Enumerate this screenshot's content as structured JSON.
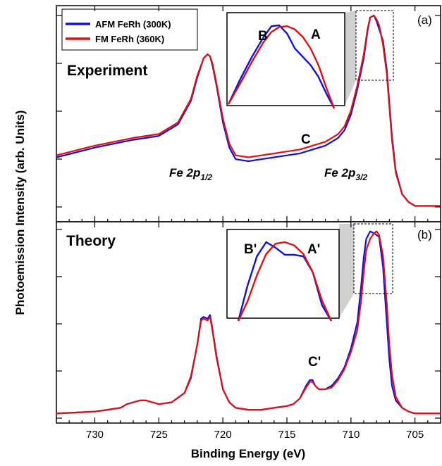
{
  "figure": {
    "xlabel": "Binding Energy (eV)",
    "ylabel": "Photoemission Intensity (arb. Units)"
  },
  "colors": {
    "afm": "#1010e0",
    "fm": "#e01010",
    "axis": "#000000",
    "inset_shade": "#d0d0d0"
  },
  "chart_data": [
    {
      "type": "line",
      "panel_tag": "(a)",
      "title": "Experiment",
      "xlabel": "Binding Energy (eV)",
      "ylabel": "Photoemission Intensity (arb. Units)",
      "xlim": [
        733,
        703
      ],
      "x_reversed": true,
      "x_ticks": [
        730,
        725,
        720,
        715,
        710,
        705
      ],
      "legend": {
        "placement": "top-left",
        "entries": [
          "AFM FeRh (300K)",
          "FM FeRh (360K)"
        ]
      },
      "annotations": [
        {
          "text": "Fe 2p",
          "sub": "1/2",
          "x": 721.5,
          "y": 0.23
        },
        {
          "text": "Fe 2p",
          "sub": "3/2",
          "x": 708.5,
          "y": 0.23
        },
        {
          "text": "C",
          "x": 713.3,
          "y": 0.36
        }
      ],
      "series": [
        {
          "name": "AFM FeRh (300K)",
          "color": "#1010e0",
          "x": [
            733,
            730,
            727,
            725,
            723.5,
            722.5,
            722,
            721.5,
            721.2,
            721,
            720.8,
            720.5,
            720,
            719.5,
            719,
            718,
            717,
            716,
            715,
            714,
            713,
            712,
            711,
            710.5,
            710,
            709.5,
            709,
            708.7,
            708.5,
            708.2,
            708,
            707.8,
            707.5,
            707.2,
            707,
            706.8,
            706.5,
            706,
            705.5,
            705,
            703
          ],
          "y": [
            0.27,
            0.32,
            0.36,
            0.38,
            0.44,
            0.56,
            0.68,
            0.78,
            0.8,
            0.79,
            0.74,
            0.64,
            0.45,
            0.32,
            0.26,
            0.25,
            0.26,
            0.27,
            0.28,
            0.29,
            0.31,
            0.33,
            0.37,
            0.41,
            0.49,
            0.62,
            0.78,
            0.92,
            0.99,
            1.0,
            0.97,
            0.93,
            0.87,
            0.72,
            0.55,
            0.38,
            0.2,
            0.08,
            0.04,
            0.02,
            0.02
          ]
        },
        {
          "name": "FM FeRh (360K)",
          "color": "#e01010",
          "x": [
            733,
            730,
            727,
            725,
            723.5,
            722.5,
            722,
            721.5,
            721.2,
            721,
            720.8,
            720.5,
            720,
            719.5,
            719,
            718,
            717,
            716,
            715,
            714,
            713,
            712,
            711,
            710.5,
            710,
            709.5,
            709,
            708.7,
            708.5,
            708.2,
            708,
            707.8,
            707.5,
            707.2,
            707,
            706.8,
            706.5,
            706,
            705.5,
            705,
            703
          ],
          "y": [
            0.28,
            0.33,
            0.37,
            0.39,
            0.45,
            0.57,
            0.69,
            0.78,
            0.8,
            0.79,
            0.75,
            0.65,
            0.47,
            0.34,
            0.28,
            0.27,
            0.28,
            0.29,
            0.3,
            0.31,
            0.33,
            0.35,
            0.39,
            0.43,
            0.51,
            0.64,
            0.8,
            0.93,
            0.99,
            1.0,
            0.98,
            0.95,
            0.85,
            0.7,
            0.53,
            0.36,
            0.19,
            0.08,
            0.04,
            0.02,
            0.02
          ]
        }
      ],
      "inset": {
        "labels": [
          "B",
          "A"
        ],
        "x": [
          709.4,
          709.1,
          708.8,
          708.5,
          708.3,
          708.1,
          707.9,
          707.7,
          707.5,
          707.3,
          707.1,
          706.9,
          706.7
        ],
        "series": [
          {
            "name": "AFM FeRh (300K)",
            "color": "#1010e0",
            "y": [
              0.05,
              0.35,
              0.62,
              0.86,
              0.99,
              1.0,
              0.9,
              0.72,
              0.62,
              0.52,
              0.38,
              0.18,
              0.0
            ]
          },
          {
            "name": "FM FeRh (360K)",
            "color": "#e01010",
            "y": [
              0.05,
              0.3,
              0.56,
              0.8,
              0.92,
              0.98,
              0.99,
              0.95,
              0.86,
              0.72,
              0.52,
              0.25,
              0.0
            ]
          }
        ]
      }
    },
    {
      "type": "line",
      "panel_tag": "(b)",
      "title": "Theory",
      "xlabel": "Binding Energy (eV)",
      "ylabel": "Photoemission Intensity (arb. Units)",
      "xlim": [
        733,
        703
      ],
      "x_reversed": true,
      "x_ticks": [
        730,
        725,
        720,
        715,
        710,
        705
      ],
      "annotations": [
        {
          "text": "C'",
          "x": 713.3,
          "y": 0.28
        }
      ],
      "series": [
        {
          "name": "AFM FeRh (300K)",
          "color": "#1010e0",
          "x": [
            733,
            730,
            729,
            728,
            727.5,
            727,
            726.5,
            726,
            725.5,
            725,
            724,
            723,
            722.5,
            722,
            721.7,
            721.5,
            721.2,
            721,
            720.8,
            720.5,
            720,
            719.5,
            719,
            718,
            717,
            716,
            715,
            714.5,
            714,
            713.5,
            713.2,
            713,
            712.8,
            712.5,
            712,
            711.5,
            711,
            710.5,
            710,
            709.5,
            709.2,
            709,
            708.8,
            708.5,
            708.2,
            708,
            707.8,
            707.5,
            707.2,
            707,
            706.8,
            706.5,
            706,
            705.5,
            705,
            703
          ],
          "y": [
            0.01,
            0.02,
            0.03,
            0.04,
            0.06,
            0.07,
            0.08,
            0.08,
            0.07,
            0.06,
            0.07,
            0.12,
            0.2,
            0.38,
            0.52,
            0.53,
            0.52,
            0.54,
            0.46,
            0.32,
            0.14,
            0.07,
            0.04,
            0.03,
            0.03,
            0.04,
            0.05,
            0.06,
            0.09,
            0.16,
            0.19,
            0.19,
            0.16,
            0.14,
            0.14,
            0.16,
            0.2,
            0.26,
            0.36,
            0.5,
            0.7,
            0.85,
            0.95,
            0.99,
            0.98,
            0.97,
            0.96,
            0.8,
            0.5,
            0.3,
            0.16,
            0.08,
            0.04,
            0.02,
            0.01,
            0.01
          ]
        },
        {
          "name": "FM FeRh (360K)",
          "color": "#e01010",
          "x": [
            733,
            730,
            729,
            728,
            727.5,
            727,
            726.5,
            726,
            725.5,
            725,
            724,
            723,
            722.5,
            722,
            721.7,
            721.5,
            721.2,
            721,
            720.8,
            720.5,
            720,
            719.5,
            719,
            718,
            717,
            716,
            715,
            714.5,
            714,
            713.5,
            713.2,
            713,
            712.8,
            712.5,
            712,
            711.5,
            711,
            710.5,
            710,
            709.5,
            709.2,
            709,
            708.8,
            708.5,
            708.2,
            708,
            707.8,
            707.5,
            707.2,
            707,
            706.8,
            706.5,
            706,
            705.5,
            705,
            703
          ],
          "y": [
            0.01,
            0.02,
            0.03,
            0.04,
            0.06,
            0.07,
            0.08,
            0.08,
            0.07,
            0.06,
            0.07,
            0.12,
            0.21,
            0.38,
            0.51,
            0.52,
            0.51,
            0.53,
            0.45,
            0.31,
            0.14,
            0.07,
            0.04,
            0.03,
            0.03,
            0.04,
            0.05,
            0.06,
            0.09,
            0.15,
            0.18,
            0.18,
            0.16,
            0.14,
            0.14,
            0.15,
            0.19,
            0.25,
            0.34,
            0.46,
            0.62,
            0.77,
            0.89,
            0.95,
            0.98,
            0.99,
            0.97,
            0.86,
            0.6,
            0.38,
            0.22,
            0.1,
            0.04,
            0.02,
            0.01,
            0.01
          ]
        }
      ],
      "inset": {
        "labels": [
          "B'",
          "A'"
        ],
        "x": [
          709.6,
          709.3,
          709.0,
          708.7,
          708.4,
          708.1,
          707.8,
          707.5,
          707.2,
          706.9,
          706.6
        ],
        "series": [
          {
            "name": "AFM FeRh (300K)",
            "color": "#1010e0",
            "y": [
              0.0,
              0.45,
              0.82,
              1.0,
              0.93,
              0.84,
              0.84,
              0.82,
              0.62,
              0.2,
              0.0
            ]
          },
          {
            "name": "FM FeRh (360K)",
            "color": "#e01010",
            "y": [
              0.0,
              0.25,
              0.58,
              0.85,
              0.98,
              1.0,
              0.96,
              0.85,
              0.62,
              0.26,
              0.0
            ]
          }
        ]
      }
    }
  ]
}
